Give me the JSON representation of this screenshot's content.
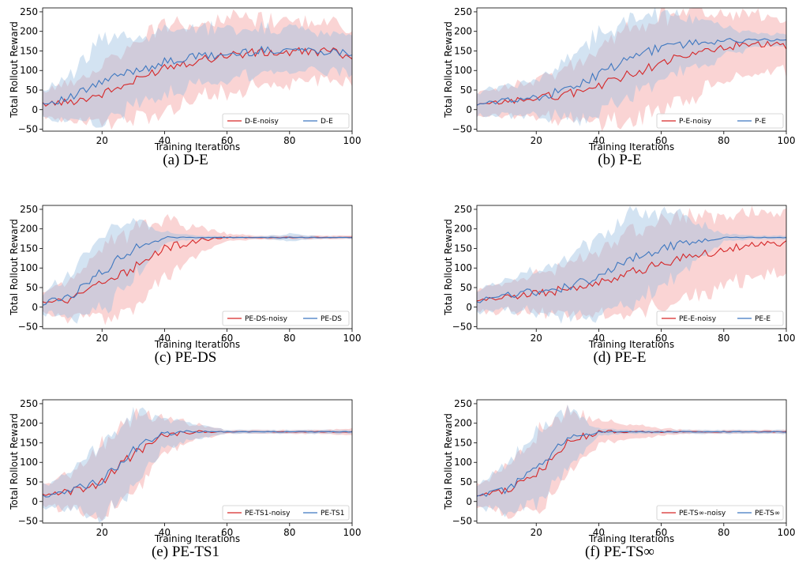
{
  "colors": {
    "noisy_line": "#d62728",
    "noisy_band": "#f4a0a0",
    "clean_line": "#3f78c0",
    "clean_band": "#9ec2e2"
  },
  "chart_data": [
    {
      "type": "line",
      "caption": "(a) D-E",
      "xlabel": "Training Iterations",
      "ylabel": "Total Rollout Reward",
      "xlim": [
        1,
        100
      ],
      "ylim": [
        -55,
        260
      ],
      "xticks": [
        20,
        40,
        60,
        80,
        100
      ],
      "yticks": [
        -50,
        0,
        50,
        100,
        150,
        200,
        250
      ],
      "legend": "lower-right",
      "grid": false,
      "series": [
        {
          "name": "D-E-noisy",
          "color": "noisy",
          "x": [
            1,
            10,
            20,
            30,
            40,
            50,
            60,
            70,
            80,
            90,
            100
          ],
          "values": [
            15,
            20,
            40,
            70,
            110,
            125,
            140,
            145,
            145,
            150,
            140
          ],
          "band": [
            40,
            50,
            80,
            110,
            120,
            110,
            100,
            95,
            85,
            80,
            70
          ]
        },
        {
          "name": "D-E",
          "color": "clean",
          "x": [
            1,
            10,
            20,
            30,
            40,
            50,
            60,
            70,
            80,
            90,
            100
          ],
          "values": [
            15,
            30,
            70,
            100,
            120,
            135,
            140,
            150,
            155,
            150,
            145
          ],
          "band": [
            40,
            60,
            120,
            100,
            90,
            80,
            70,
            60,
            60,
            55,
            50
          ]
        }
      ]
    },
    {
      "type": "line",
      "caption": "(b) P-E",
      "xlabel": "Training Iterations",
      "ylabel": "Total Rollout Reward",
      "xlim": [
        1,
        100
      ],
      "ylim": [
        -55,
        260
      ],
      "xticks": [
        20,
        40,
        60,
        80,
        100
      ],
      "yticks": [
        -50,
        0,
        50,
        100,
        150,
        200,
        250
      ],
      "legend": "lower-right",
      "grid": false,
      "series": [
        {
          "name": "P-E-noisy",
          "color": "noisy",
          "x": [
            1,
            10,
            20,
            30,
            40,
            50,
            60,
            70,
            80,
            90,
            100
          ],
          "values": [
            10,
            20,
            30,
            40,
            60,
            90,
            120,
            140,
            160,
            165,
            160
          ],
          "band": [
            30,
            40,
            50,
            70,
            100,
            120,
            130,
            120,
            90,
            80,
            70
          ]
        },
        {
          "name": "P-E",
          "color": "clean",
          "x": [
            1,
            10,
            20,
            30,
            40,
            50,
            60,
            70,
            80,
            90,
            100
          ],
          "values": [
            10,
            25,
            30,
            50,
            90,
            130,
            160,
            170,
            175,
            178,
            178
          ],
          "band": [
            30,
            40,
            50,
            80,
            110,
            110,
            90,
            70,
            40,
            20,
            15
          ]
        }
      ]
    },
    {
      "type": "line",
      "caption": "(c) PE-DS",
      "xlabel": "Training Iterations",
      "ylabel": "Total Rollout Reward",
      "xlim": [
        1,
        100
      ],
      "ylim": [
        -55,
        260
      ],
      "xticks": [
        20,
        40,
        60,
        80,
        100
      ],
      "yticks": [
        -50,
        0,
        50,
        100,
        150,
        200,
        250
      ],
      "legend": "lower-right",
      "grid": false,
      "series": [
        {
          "name": "PE-DS-noisy",
          "color": "noisy",
          "x": [
            1,
            10,
            20,
            30,
            40,
            50,
            60,
            70,
            80,
            90,
            100
          ],
          "values": [
            10,
            20,
            60,
            100,
            150,
            170,
            178,
            178,
            178,
            178,
            178
          ],
          "band": [
            30,
            50,
            100,
            110,
            80,
            40,
            10,
            5,
            5,
            5,
            5
          ]
        },
        {
          "name": "PE-DS",
          "color": "clean",
          "x": [
            1,
            10,
            20,
            30,
            40,
            50,
            60,
            70,
            80,
            90,
            100
          ],
          "values": [
            10,
            30,
            90,
            150,
            178,
            178,
            178,
            178,
            178,
            178,
            178
          ],
          "band": [
            30,
            60,
            110,
            80,
            15,
            5,
            3,
            3,
            10,
            3,
            3
          ]
        }
      ]
    },
    {
      "type": "line",
      "caption": "(d) PE-E",
      "xlabel": "Training Iterations",
      "ylabel": "Total Rollout Reward",
      "xlim": [
        1,
        100
      ],
      "ylim": [
        -55,
        260
      ],
      "xticks": [
        20,
        40,
        60,
        80,
        100
      ],
      "yticks": [
        -50,
        0,
        50,
        100,
        150,
        200,
        250
      ],
      "legend": "lower-right",
      "grid": false,
      "series": [
        {
          "name": "PE-E-noisy",
          "color": "noisy",
          "x": [
            1,
            10,
            20,
            30,
            40,
            50,
            60,
            70,
            80,
            90,
            100
          ],
          "values": [
            15,
            25,
            35,
            45,
            60,
            90,
            110,
            130,
            150,
            160,
            165
          ],
          "band": [
            30,
            40,
            50,
            70,
            90,
            110,
            120,
            110,
            100,
            90,
            80
          ]
        },
        {
          "name": "PE-E",
          "color": "clean",
          "x": [
            1,
            10,
            20,
            30,
            40,
            50,
            60,
            70,
            80,
            90,
            100
          ],
          "values": [
            15,
            30,
            40,
            50,
            80,
            120,
            150,
            170,
            178,
            178,
            178
          ],
          "band": [
            30,
            40,
            60,
            80,
            110,
            120,
            100,
            60,
            10,
            5,
            5
          ]
        }
      ]
    },
    {
      "type": "line",
      "caption": "(e) PE-TS1",
      "xlabel": "Training Iterations",
      "ylabel": "Total Rollout Reward",
      "xlim": [
        1,
        100
      ],
      "ylim": [
        -55,
        260
      ],
      "xticks": [
        20,
        40,
        60,
        80,
        100
      ],
      "yticks": [
        -50,
        0,
        50,
        100,
        150,
        200,
        250
      ],
      "legend": "lower-right",
      "grid": false,
      "series": [
        {
          "name": "PE-TS1-noisy",
          "color": "noisy",
          "x": [
            1,
            10,
            20,
            30,
            40,
            50,
            60,
            70,
            80,
            90,
            100
          ],
          "values": [
            15,
            25,
            50,
            120,
            170,
            178,
            178,
            178,
            178,
            178,
            178
          ],
          "band": [
            30,
            50,
            100,
            110,
            50,
            20,
            5,
            5,
            5,
            5,
            10
          ]
        },
        {
          "name": "PE-TS1",
          "color": "clean",
          "x": [
            1,
            10,
            20,
            30,
            40,
            50,
            60,
            70,
            80,
            90,
            100
          ],
          "values": [
            15,
            25,
            55,
            130,
            175,
            178,
            178,
            178,
            178,
            178,
            178
          ],
          "band": [
            30,
            50,
            100,
            100,
            40,
            20,
            5,
            5,
            5,
            5,
            5
          ]
        }
      ]
    },
    {
      "type": "line",
      "caption": "(f) PE-TS∞",
      "xlabel": "Training Iterations",
      "ylabel": "Total Rollout Reward",
      "xlim": [
        1,
        100
      ],
      "ylim": [
        -55,
        260
      ],
      "xticks": [
        20,
        40,
        60,
        80,
        100
      ],
      "yticks": [
        -50,
        0,
        50,
        100,
        150,
        200,
        250
      ],
      "legend": "lower-right",
      "grid": false,
      "series": [
        {
          "name": "PE-TS∞-noisy",
          "color": "noisy",
          "x": [
            1,
            10,
            20,
            30,
            40,
            50,
            60,
            70,
            80,
            90,
            100
          ],
          "values": [
            15,
            25,
            70,
            150,
            178,
            178,
            178,
            178,
            178,
            178,
            178
          ],
          "band": [
            30,
            60,
            110,
            90,
            30,
            20,
            10,
            5,
            5,
            5,
            5
          ]
        },
        {
          "name": "PE-TS∞",
          "color": "clean",
          "x": [
            1,
            10,
            20,
            30,
            40,
            50,
            60,
            70,
            80,
            90,
            100
          ],
          "values": [
            15,
            30,
            80,
            160,
            178,
            178,
            178,
            178,
            178,
            178,
            178
          ],
          "band": [
            30,
            60,
            100,
            80,
            10,
            5,
            5,
            5,
            5,
            5,
            5
          ]
        }
      ]
    }
  ]
}
